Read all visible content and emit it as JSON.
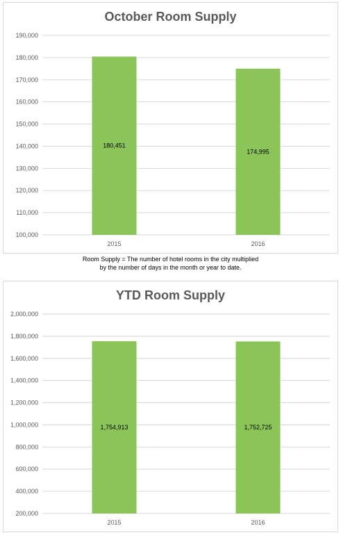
{
  "note": {
    "line1": "Room Supply = The number of hotel rooms in the city multiplied",
    "line2": "by the number of days in the month or year to date."
  },
  "colors": {
    "bar": "#8bc55a",
    "grid": "#d9d9d9",
    "text": "#595959"
  },
  "chart_data": [
    {
      "type": "bar",
      "title": "October Room Supply",
      "categories": [
        "2015",
        "2016"
      ],
      "values": [
        180451,
        174995
      ],
      "data_labels": [
        "180,451",
        "174,995"
      ],
      "ylim": [
        100000,
        190000
      ],
      "yticks": [
        100000,
        110000,
        120000,
        130000,
        140000,
        150000,
        160000,
        170000,
        180000,
        190000
      ],
      "ytick_labels": [
        "100,000",
        "110,000",
        "120,000",
        "130,000",
        "140,000",
        "150,000",
        "160,000",
        "170,000",
        "180,000",
        "190,000"
      ],
      "grid": true,
      "legend": "none"
    },
    {
      "type": "bar",
      "title": "YTD Room Supply",
      "categories": [
        "2015",
        "2016"
      ],
      "values": [
        1754913,
        1752725
      ],
      "data_labels": [
        "1,754,913",
        "1,752,725"
      ],
      "ylim": [
        200000,
        2000000
      ],
      "yticks": [
        200000,
        400000,
        600000,
        800000,
        1000000,
        1200000,
        1400000,
        1600000,
        1800000,
        2000000
      ],
      "ytick_labels": [
        "200,000",
        "400,000",
        "600,000",
        "800,000",
        "1,000,000",
        "1,200,000",
        "1,400,000",
        "1,600,000",
        "1,800,000",
        "2,000,000"
      ],
      "grid": true,
      "legend": "none"
    }
  ]
}
